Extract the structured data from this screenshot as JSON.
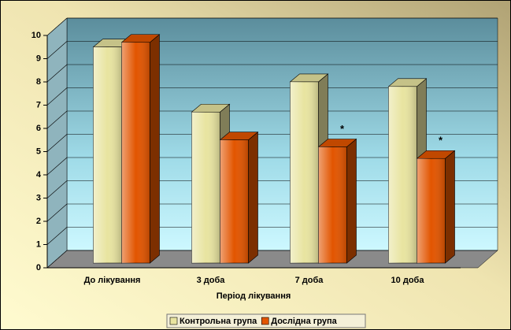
{
  "chart_data": {
    "type": "bar3d",
    "categories": [
      "До лікування",
      "3 доба",
      "7 доба",
      "10 доба"
    ],
    "series": [
      {
        "name": "Контрольна група",
        "color": "#e8e4a0",
        "values": [
          9.3,
          6.5,
          7.8,
          7.6
        ]
      },
      {
        "name": "Дослідна група",
        "color": "#e25500",
        "values": [
          9.5,
          5.3,
          5.0,
          4.5
        ]
      }
    ],
    "xlabel": "Період лікування",
    "annotations": [
      {
        "text": "*",
        "x": "7 доба"
      },
      {
        "text": "*",
        "x": "10 доба"
      }
    ],
    "ylim": [
      0,
      10
    ],
    "yticks": [
      0,
      1,
      2,
      3,
      4,
      5,
      6,
      7,
      8,
      9,
      10
    ],
    "grid": true,
    "legend": "bottom"
  }
}
